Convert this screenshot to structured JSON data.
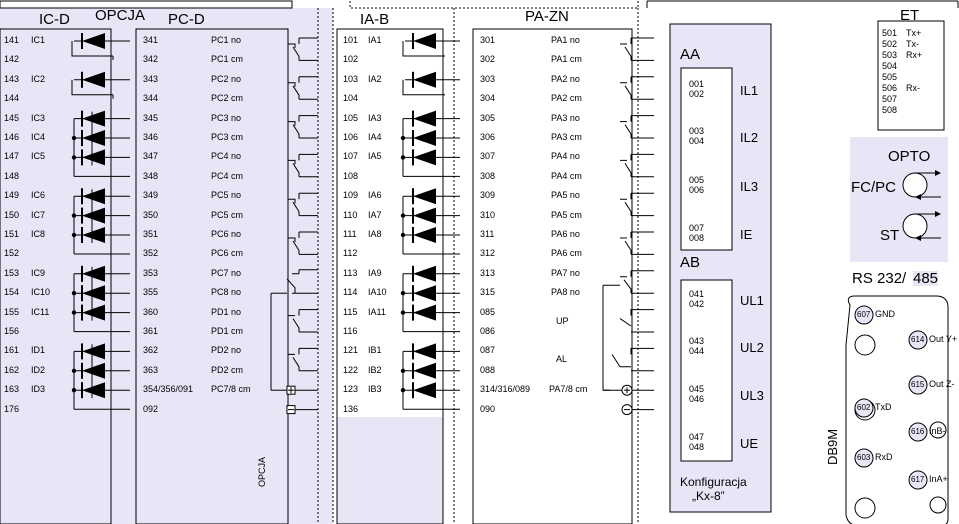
{
  "headers": {
    "ic_d": "IC-D",
    "opcja": "OPCJA",
    "pc_d": "PC-D",
    "ia_b": "IA-B",
    "pa_zn": "PA-ZN",
    "et": "ET"
  },
  "left_terminals": [
    {
      "num": "141",
      "name": "IC1"
    },
    {
      "num": "142",
      "name": ""
    },
    {
      "num": "143",
      "name": "IC2"
    },
    {
      "num": "144",
      "name": ""
    },
    {
      "num": "145",
      "name": "IC3"
    },
    {
      "num": "146",
      "name": "IC4"
    },
    {
      "num": "147",
      "name": "IC5"
    },
    {
      "num": "148",
      "name": ""
    },
    {
      "num": "149",
      "name": "IC6"
    },
    {
      "num": "150",
      "name": "IC7"
    },
    {
      "num": "151",
      "name": "IC8"
    },
    {
      "num": "152",
      "name": ""
    },
    {
      "num": "153",
      "name": "IC9"
    },
    {
      "num": "154",
      "name": "IC10"
    },
    {
      "num": "155",
      "name": "IC11"
    },
    {
      "num": "156",
      "name": ""
    },
    {
      "num": "161",
      "name": "ID1"
    },
    {
      "num": "162",
      "name": "ID2"
    },
    {
      "num": "163",
      "name": "ID3"
    },
    {
      "num": "176",
      "name": ""
    }
  ],
  "pc_terminals": [
    {
      "num": "341",
      "name": "PC1 no"
    },
    {
      "num": "342",
      "name": "PC1 cm"
    },
    {
      "num": "343",
      "name": "PC2 no"
    },
    {
      "num": "344",
      "name": "PC2 cm"
    },
    {
      "num": "345",
      "name": "PC3 no"
    },
    {
      "num": "346",
      "name": "PC3 cm"
    },
    {
      "num": "347",
      "name": "PC4 no"
    },
    {
      "num": "348",
      "name": "PC4 cm"
    },
    {
      "num": "349",
      "name": "PC5 no"
    },
    {
      "num": "350",
      "name": "PC5 cm"
    },
    {
      "num": "351",
      "name": "PC6 no"
    },
    {
      "num": "352",
      "name": "PC6 cm"
    },
    {
      "num": "353",
      "name": "PC7 no"
    },
    {
      "num": "355",
      "name": "PC8 no"
    },
    {
      "num": "360",
      "name": "PD1 no"
    },
    {
      "num": "361",
      "name": "PD1 cm"
    },
    {
      "num": "362",
      "name": "PD2 no"
    },
    {
      "num": "363",
      "name": "PD2 cm"
    },
    {
      "num": "354/356/091",
      "name": "PC7/8 cm"
    },
    {
      "num": "092",
      "name": ""
    }
  ],
  "opcja_vertical": "OPCJA",
  "ia_terminals": [
    {
      "num": "101",
      "name": "IA1"
    },
    {
      "num": "102",
      "name": ""
    },
    {
      "num": "103",
      "name": "IA2"
    },
    {
      "num": "104",
      "name": ""
    },
    {
      "num": "105",
      "name": "IA3"
    },
    {
      "num": "106",
      "name": "IA4"
    },
    {
      "num": "107",
      "name": "IA5"
    },
    {
      "num": "108",
      "name": ""
    },
    {
      "num": "109",
      "name": "IA6"
    },
    {
      "num": "110",
      "name": "IA7"
    },
    {
      "num": "111",
      "name": "IA8"
    },
    {
      "num": "112",
      "name": ""
    },
    {
      "num": "113",
      "name": "IA9"
    },
    {
      "num": "114",
      "name": "IA10"
    },
    {
      "num": "115",
      "name": "IA11"
    },
    {
      "num": "116",
      "name": ""
    },
    {
      "num": "121",
      "name": "IB1"
    },
    {
      "num": "122",
      "name": "IB2"
    },
    {
      "num": "123",
      "name": "IB3"
    },
    {
      "num": "136",
      "name": ""
    }
  ],
  "pa_terminals": [
    {
      "num": "301",
      "name": "PA1 no"
    },
    {
      "num": "302",
      "name": "PA1 cm"
    },
    {
      "num": "303",
      "name": "PA2 no"
    },
    {
      "num": "304",
      "name": "PA2 cm"
    },
    {
      "num": "305",
      "name": "PA3 no"
    },
    {
      "num": "306",
      "name": "PA3 cm"
    },
    {
      "num": "307",
      "name": "PA4 no"
    },
    {
      "num": "308",
      "name": "PA4 cm"
    },
    {
      "num": "309",
      "name": "PA5 no"
    },
    {
      "num": "310",
      "name": "PA5 cm"
    },
    {
      "num": "311",
      "name": "PA6 no"
    },
    {
      "num": "312",
      "name": "PA6 cm"
    },
    {
      "num": "313",
      "name": "PA7 no"
    },
    {
      "num": "315",
      "name": "PA8 no"
    },
    {
      "num": "085",
      "name": ""
    },
    {
      "num": "086",
      "name": ""
    },
    {
      "num": "087",
      "name": ""
    },
    {
      "num": "088",
      "name": ""
    },
    {
      "num": "314/316/089",
      "name": "PA7/8 cm"
    },
    {
      "num": "090",
      "name": ""
    }
  ],
  "pa_extra": {
    "up": "UP",
    "al": "AL"
  },
  "aa": {
    "title": "AA",
    "rows": [
      {
        "a": "001",
        "b": "002",
        "label": "IL1"
      },
      {
        "a": "003",
        "b": "004",
        "label": "IL2"
      },
      {
        "a": "005",
        "b": "006",
        "label": "IL3"
      },
      {
        "a": "007",
        "b": "008",
        "label": "IE"
      }
    ]
  },
  "ab": {
    "title": "AB",
    "rows": [
      {
        "a": "041",
        "b": "042",
        "label": "UL1"
      },
      {
        "a": "043",
        "b": "044",
        "label": "UL2"
      },
      {
        "a": "045",
        "b": "046",
        "label": "UL3"
      },
      {
        "a": "047",
        "b": "048",
        "label": "UE"
      }
    ]
  },
  "konfiguracja": {
    "line1": "Konfiguracja",
    "line2": "„Kx-8”"
  },
  "et": {
    "title": "ET",
    "rows": [
      {
        "num": "501",
        "label": "Tx+"
      },
      {
        "num": "502",
        "label": "Tx-"
      },
      {
        "num": "503",
        "label": "Rx+"
      },
      {
        "num": "504",
        "label": ""
      },
      {
        "num": "505",
        "label": ""
      },
      {
        "num": "506",
        "label": "Rx-"
      },
      {
        "num": "507",
        "label": ""
      },
      {
        "num": "508",
        "label": ""
      }
    ]
  },
  "opto": {
    "title": "OPTO",
    "fcpc": "FC/PC",
    "st": "ST"
  },
  "rs": {
    "title_a": "RS 232/",
    "title_b": "485"
  },
  "db9": {
    "label": "DB9M",
    "pins": [
      {
        "num": "607",
        "label": "GND"
      },
      {
        "num": "614",
        "label": "Out Y+"
      },
      {
        "num": "615",
        "label": "Out Z-"
      },
      {
        "num": "602",
        "label": "TxD"
      },
      {
        "num": "616",
        "label": "InB-"
      },
      {
        "num": "603",
        "label": "RxD"
      },
      {
        "num": "617",
        "label": "InA+"
      }
    ]
  },
  "colors": {
    "panel": "#e6e6f7",
    "line": "#000000"
  }
}
